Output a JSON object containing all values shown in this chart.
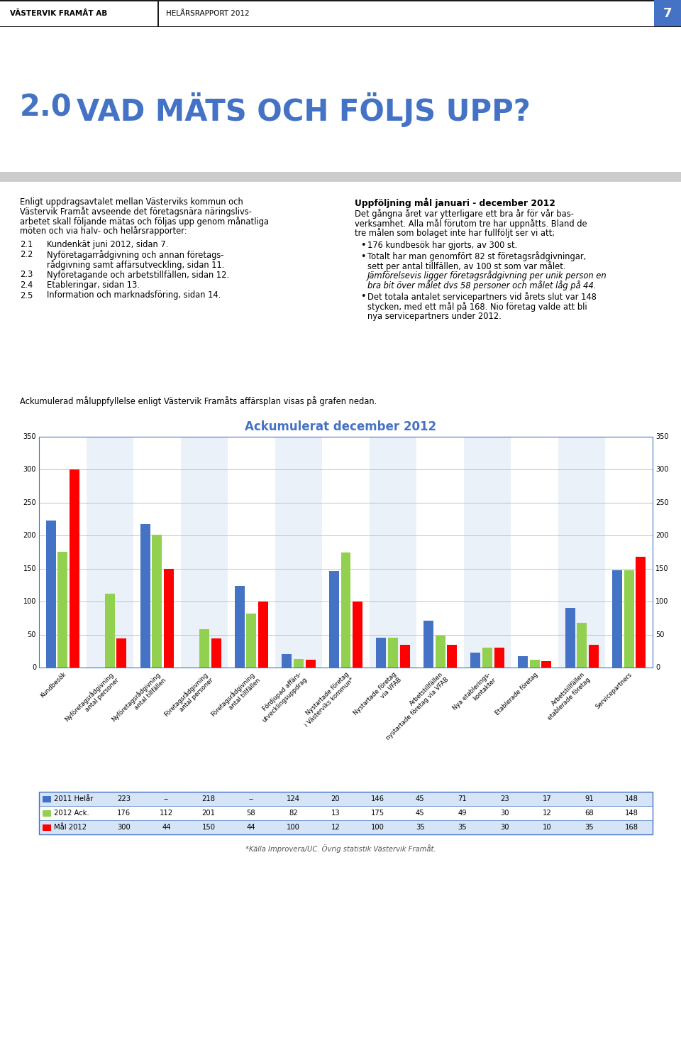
{
  "page_header_left": "VÄSTERVIK FRAMÅT AB",
  "page_header_right": "HELÅRSRAPPORT 2012",
  "page_number": "7",
  "section_number": "2.0",
  "section_title": "VAD MÄTS OCH FÖLJS UPP?",
  "list_items": [
    [
      "2.1",
      "Kundenkät juni 2012, sidan 7."
    ],
    [
      "2.2",
      "Nyföretagarrådgivning och annan företags-\nrådgivning samt affärsutveckling, sidan 11."
    ],
    [
      "2.3",
      "Nyföretagande och arbetstillfällen, sidan 12."
    ],
    [
      "2.4",
      "Etableringar, sidan 13."
    ],
    [
      "2.5",
      "Information och marknadsföring, sidan 14."
    ]
  ],
  "right_col_title": "Uppföljning mål januari - december 2012",
  "graph_intro": "Ackumulerad måluppfyllelse enligt Västervik Framåts affärsplan visas på grafen nedan.",
  "chart_title": "Ackumulerat december 2012",
  "chart_footnote": "*Källa Improvera/UC. Övrig statistik Västervik Framåt.",
  "categories": [
    "Kundbesök",
    "Nyföretagsrådgivning\nantal personer",
    "Nyföretagsrådgivning\nantal tillfällen",
    "Företagsrådgivning\nantal personer",
    "Företagsrådgivning\nantal tillfällen",
    "Fördjupad affärs-\nutvecklingsuppdrag",
    "Nystartade företag\ni Västerviks kommun*",
    "Nystartade företag\nvia VFAB",
    "Arbetstillfällen\nnystartade företag via VFAB",
    "Nya etablerings-\nkontakter",
    "Etablerade företag",
    "Arbetstillfällen\netablerade företag",
    "Servicepartners"
  ],
  "series_2011": [
    223,
    null,
    218,
    null,
    124,
    20,
    146,
    45,
    71,
    23,
    17,
    91,
    148
  ],
  "series_2012": [
    176,
    112,
    201,
    58,
    82,
    13,
    175,
    45,
    49,
    30,
    12,
    68,
    148
  ],
  "series_mal": [
    300,
    44,
    150,
    44,
    100,
    12,
    100,
    35,
    35,
    30,
    10,
    35,
    168
  ],
  "color_2011": "#4472C4",
  "color_2012": "#92D050",
  "color_mal": "#FF0000",
  "ylim": [
    0,
    350
  ],
  "yticks": [
    0,
    50,
    100,
    150,
    200,
    250,
    300,
    350
  ],
  "legend_2011": "2011 Helår",
  "legend_2012": "2012 Ack.",
  "legend_mal": "Mål 2012",
  "bg_color": "#FFFFFF",
  "section_num_color": "#4472C4",
  "section_title_color": "#4472C4",
  "gray_band_color": "#CCCCCC",
  "table_border_color": "#4472C4",
  "footnote_color": "#555555",
  "intro_left": [
    "Enligt uppdragsavtalet mellan Västerviks kommun och",
    "Västervik Framåt avseende det företagsnära näringslivs-",
    "arbetet skall följande mätas och följas upp genom månatliga",
    "möten och via halv- och helårsrapporter:"
  ],
  "right_para1": [
    "Det gångna året var ytterligare ett bra år för vår bas-",
    "verksamhet. Alla mål förutom tre har uppnåtts. Bland de",
    "tre målen som bolaget inte har fullföljt ser vi att;"
  ],
  "bullet1": "176 kundbesök har gjorts, av 300 st.",
  "bullet2_normal": [
    "Totalt har man genomfört 82 st företagsrådgivningar,",
    "sett per antal tillfällen, av 100 st som var målet."
  ],
  "bullet2_italic": [
    "Jämförelsevis ligger företagsrådgivning per unik person en",
    "bra bit över målet dvs 58 personer och målet låg på 44."
  ],
  "bullet3": [
    "Det totala antalet servicepartners vid årets slut var 148",
    "stycken, med ett mål på 168. Nio företag valde att bli",
    "nya servicepartners under 2012."
  ]
}
